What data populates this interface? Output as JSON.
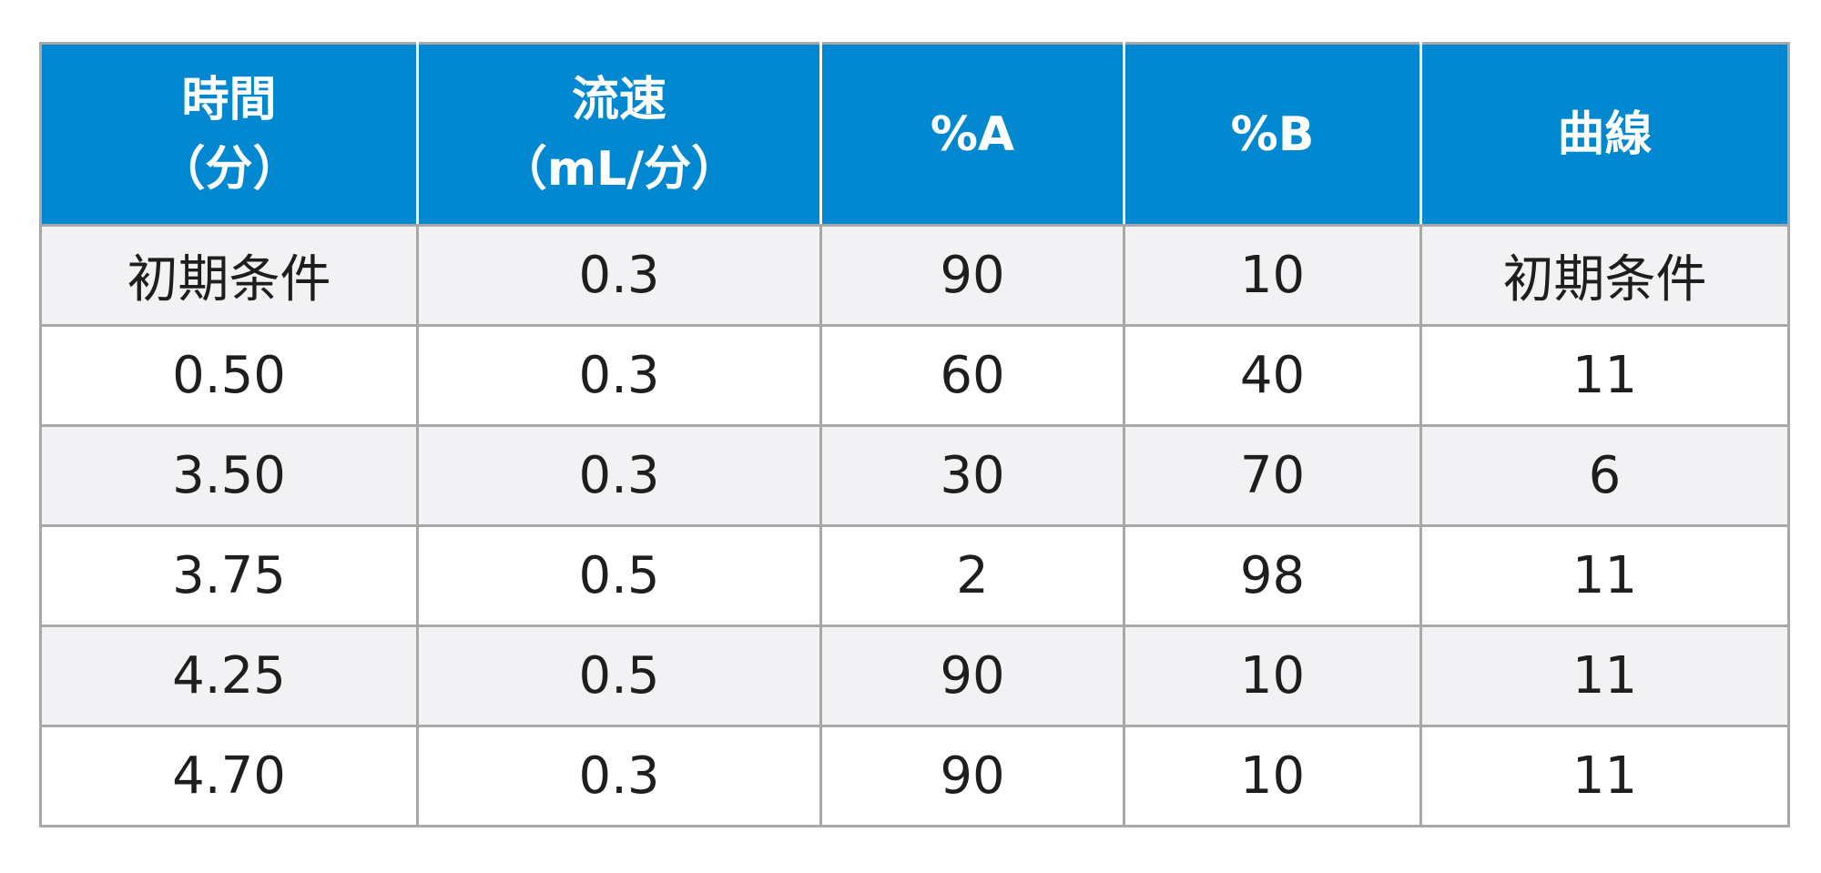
{
  "table": {
    "headers": [
      [
        "時間",
        "（分）"
      ],
      [
        "流速",
        "（mL/分）"
      ],
      [
        "%A"
      ],
      [
        "%B"
      ],
      [
        "曲線"
      ]
    ],
    "rows": [
      [
        "初期条件",
        "0.3",
        "90",
        "10",
        "初期条件"
      ],
      [
        "0.50",
        "0.3",
        "60",
        "40",
        "11"
      ],
      [
        "3.50",
        "0.3",
        "30",
        "70",
        "6"
      ],
      [
        "3.75",
        "0.5",
        "2",
        "98",
        "11"
      ],
      [
        "4.25",
        "0.5",
        "90",
        "10",
        "11"
      ],
      [
        "4.70",
        "0.3",
        "90",
        "10",
        "11"
      ]
    ]
  },
  "colors": {
    "header_background": "#0288d1",
    "header_text": "#ffffff",
    "row_shade": "#f2f2f4",
    "border": "#a8a8a8"
  }
}
